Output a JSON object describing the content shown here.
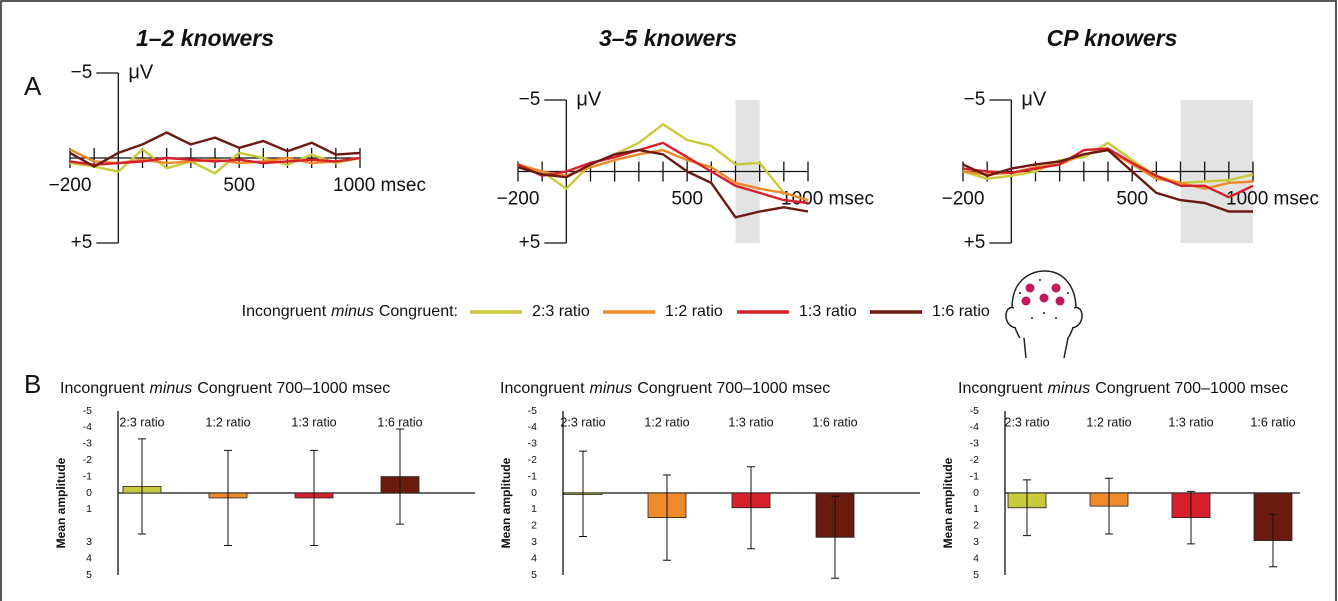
{
  "chart_data": [
    {
      "type": "line",
      "panel_label": "A",
      "title": "1–2 knowers",
      "y_label": "μV",
      "y_reversed": true,
      "legend_title": {
        "before": "Incongruent",
        "emphasis": "minus",
        "after": "Congruent:"
      },
      "xlim": [
        -200,
        1000
      ],
      "ylim": [
        -5,
        5
      ],
      "xticks": [
        {
          "value": -200,
          "label": "−200"
        },
        500,
        {
          "value": 1000,
          "label": "1000 msec"
        }
      ],
      "xminorticks": [
        -100,
        0,
        100,
        200,
        300,
        400,
        600,
        700,
        800,
        900
      ],
      "yticks": [
        {
          "value": -5,
          "label": "−5"
        },
        {
          "value": 5,
          "label": "+5"
        }
      ],
      "x": [
        -200,
        -100,
        0,
        100,
        200,
        300,
        400,
        500,
        600,
        700,
        800,
        900,
        1000
      ],
      "series": [
        {
          "name": "2:3 ratio",
          "color": "#c9c93c",
          "values": [
            0.3,
            0.5,
            0.8,
            -0.5,
            0.6,
            0.2,
            0.9,
            -0.3,
            0,
            0.4,
            -0.2,
            0.3,
            0
          ]
        },
        {
          "name": "1:2 ratio",
          "color": "#ef8a2a",
          "values": [
            -0.5,
            0.2,
            0.3,
            0.1,
            0.3,
            0.2,
            0.1,
            0.3,
            0.2,
            0,
            0.3,
            0.2,
            0
          ]
        },
        {
          "name": "1:3 ratio",
          "color": "#d6202b",
          "values": [
            0.2,
            0.4,
            0.3,
            0.2,
            0,
            0.1,
            0.2,
            0.1,
            0.3,
            0.2,
            0.1,
            0.2,
            0
          ]
        },
        {
          "name": "1:6 ratio",
          "color": "#6a1a0e",
          "values": [
            -0.3,
            0.5,
            -0.3,
            -0.8,
            -1.5,
            -0.8,
            -1.2,
            -0.6,
            -1.0,
            -0.4,
            -0.9,
            -0.2,
            -0.3
          ]
        }
      ]
    },
    {
      "type": "line",
      "title": "3–5 knowers",
      "y_label": "μV",
      "y_reversed": true,
      "highlight": [
        700,
        800
      ],
      "xlim": [
        -200,
        1000
      ],
      "ylim": [
        -5,
        5
      ],
      "xticks": [
        {
          "value": -200,
          "label": "−200"
        },
        500,
        {
          "value": 1000,
          "label": "1000 msec"
        }
      ],
      "xminorticks": [
        -100,
        0,
        100,
        200,
        300,
        400,
        600,
        700,
        800,
        900
      ],
      "yticks": [
        {
          "value": -5,
          "label": "−5"
        },
        {
          "value": 5,
          "label": "+5"
        }
      ],
      "x": [
        -200,
        -100,
        0,
        100,
        200,
        300,
        400,
        500,
        600,
        700,
        800,
        900,
        1000
      ],
      "series": [
        {
          "name": "2:3 ratio",
          "color": "#c9c93c",
          "values": [
            -0.3,
            0,
            1.2,
            -0.5,
            -1.2,
            -2.0,
            -3.3,
            -2.2,
            -1.8,
            -0.5,
            -0.6,
            1.5,
            2.0
          ]
        },
        {
          "name": "1:2 ratio",
          "color": "#ef8a2a",
          "values": [
            -0.5,
            0,
            0.3,
            -0.3,
            -0.8,
            -1.2,
            -1.5,
            -0.8,
            -0.3,
            0.8,
            1.2,
            1.5,
            2.0
          ]
        },
        {
          "name": "1:3 ratio",
          "color": "#d6202b",
          "values": [
            -0.5,
            0.3,
            0,
            -0.6,
            -1.0,
            -1.5,
            -2.0,
            -1.0,
            0,
            1.0,
            1.5,
            2.0,
            2.2
          ]
        },
        {
          "name": "1:6 ratio",
          "color": "#6a1a0e",
          "values": [
            -0.3,
            0.2,
            0.4,
            -0.5,
            -1.2,
            -1.5,
            -1.2,
            0,
            0.8,
            3.2,
            2.8,
            2.5,
            2.8
          ]
        }
      ]
    },
    {
      "type": "line",
      "title": "CP knowers",
      "y_label": "μV",
      "y_reversed": true,
      "highlight": [
        700,
        1000
      ],
      "xlim": [
        -200,
        1000
      ],
      "ylim": [
        -5,
        5
      ],
      "xticks": [
        {
          "value": -200,
          "label": "−200"
        },
        500,
        {
          "value": 1000,
          "label": "1000 msec"
        }
      ],
      "xminorticks": [
        -100,
        0,
        100,
        200,
        300,
        400,
        600,
        700,
        800,
        900
      ],
      "yticks": [
        {
          "value": -5,
          "label": "−5"
        },
        {
          "value": 5,
          "label": "+5"
        }
      ],
      "x": [
        -200,
        -100,
        0,
        100,
        200,
        300,
        400,
        500,
        600,
        700,
        800,
        900,
        1000
      ],
      "series": [
        {
          "name": "2:3 ratio",
          "color": "#c9c93c",
          "values": [
            0,
            0.5,
            0.3,
            0,
            -0.8,
            -1.0,
            -2.0,
            -0.8,
            0.3,
            0.8,
            0.7,
            0.6,
            0.2
          ]
        },
        {
          "name": "1:2 ratio",
          "color": "#ef8a2a",
          "values": [
            0,
            0.2,
            0.1,
            -0.3,
            -0.5,
            -1.2,
            -1.5,
            -0.5,
            0.5,
            0.8,
            1.2,
            0.8,
            0.7
          ]
        },
        {
          "name": "1:3 ratio",
          "color": "#d6202b",
          "values": [
            -0.2,
            0,
            0.1,
            -0.2,
            -0.5,
            -1.5,
            -1.6,
            -0.6,
            0.3,
            1.0,
            1.0,
            1.8,
            1.0
          ]
        },
        {
          "name": "1:6 ratio",
          "color": "#6a1a0e",
          "values": [
            -0.5,
            0.3,
            -0.2,
            -0.5,
            -0.7,
            -1.2,
            -1.5,
            0,
            1.5,
            2.0,
            2.2,
            2.8,
            2.8
          ]
        }
      ]
    },
    {
      "type": "bar",
      "panel_label": "B",
      "title": {
        "before": "Incongruent",
        "emphasis": "minus",
        "after": "Congruent  700–1000 msec"
      },
      "y_label": "Mean amplitude",
      "y_reversed": true,
      "ylim": [
        -5,
        5
      ],
      "yticks": [
        -5,
        -4,
        -3,
        -2,
        -1,
        0,
        1,
        3,
        4,
        5
      ],
      "categories": [
        "2:3 ratio",
        "1:2 ratio",
        "1:3 ratio",
        "1:6 ratio"
      ],
      "colors": [
        "#c9c93c",
        "#ef8a2a",
        "#d6202b",
        "#6a1a0e"
      ],
      "values": [
        -0.4,
        0.3,
        0.3,
        -1.0
      ],
      "errors": [
        2.9,
        2.9,
        2.9,
        2.9
      ]
    },
    {
      "type": "bar",
      "title": {
        "before": "Incongruent",
        "emphasis": "minus",
        "after": "Congruent  700–1000 msec"
      },
      "y_label": "Mean amplitude",
      "y_reversed": true,
      "ylim": [
        -5,
        5
      ],
      "yticks": [
        -5,
        -4,
        -3,
        -2,
        -1,
        0,
        1,
        2,
        3,
        4,
        5
      ],
      "categories": [
        "2:3 ratio",
        "1:2 ratio",
        "1:3 ratio",
        "1:6 ratio"
      ],
      "colors": [
        "#c9c93c",
        "#ef8a2a",
        "#d6202b",
        "#6a1a0e"
      ],
      "values": [
        0.05,
        1.5,
        0.9,
        2.7
      ],
      "errors": [
        2.6,
        2.6,
        2.5,
        2.5
      ]
    },
    {
      "type": "bar",
      "title": {
        "before": "Incongruent",
        "emphasis": "minus",
        "after": "Congruent  700–1000 msec"
      },
      "y_label": "Mean amplitude",
      "y_reversed": true,
      "ylim": [
        -5,
        5
      ],
      "yticks": [
        -5,
        -4,
        -3,
        -2,
        -1,
        0,
        1,
        2,
        3,
        4,
        5
      ],
      "categories": [
        "2:3 ratio",
        "1:2 ratio",
        "1:3 ratio",
        "1:6 ratio"
      ],
      "colors": [
        "#c9c93c",
        "#ef8a2a",
        "#d6202b",
        "#6a1a0e"
      ],
      "values": [
        0.9,
        0.8,
        1.5,
        2.9
      ],
      "errors": [
        1.7,
        1.7,
        1.6,
        1.6
      ]
    }
  ]
}
